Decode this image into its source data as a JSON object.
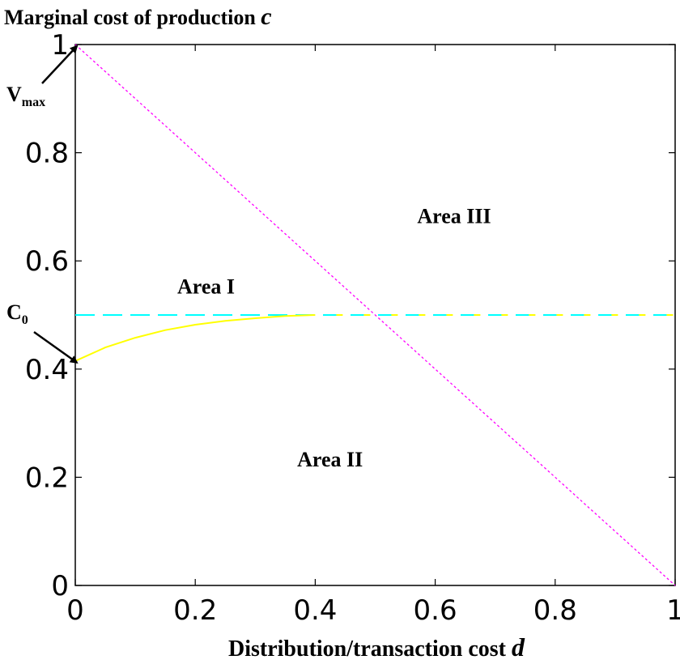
{
  "chart_data": {
    "type": "line",
    "title": "Marginal cost of production ",
    "title_var": "c",
    "xlabel": "Distribution/transaction cost ",
    "xlabel_var": "d",
    "ylabel": "",
    "xlim": [
      0,
      1
    ],
    "ylim": [
      0,
      1
    ],
    "x_ticks": [
      0,
      0.2,
      0.4,
      0.6,
      0.8,
      1
    ],
    "x_tick_labels": [
      "0",
      "0.2",
      "0.4",
      "0.6",
      "0.8",
      "1"
    ],
    "y_ticks": [
      0,
      0.2,
      0.4,
      0.6,
      0.8,
      1
    ],
    "y_tick_labels": [
      "0",
      "0.2",
      "0.4",
      "0.6",
      "0.8",
      "1"
    ],
    "grid": false,
    "series": [
      {
        "style": "dotted",
        "color": "#ff00ff",
        "x": [
          0,
          1
        ],
        "y": [
          1,
          0
        ]
      },
      {
        "style": "dashed",
        "color": "#00ffff",
        "x": [
          0,
          1
        ],
        "y": [
          0.5,
          0.5
        ]
      },
      {
        "style": "solid-then-dashed",
        "color": "#ffff00",
        "x": [
          0,
          0.05,
          0.1,
          0.15,
          0.2,
          0.25,
          0.3,
          0.35,
          0.4,
          0.5,
          0.6,
          0.7,
          0.8,
          0.9,
          1.0
        ],
        "y": [
          0.415,
          0.44,
          0.458,
          0.472,
          0.482,
          0.489,
          0.494,
          0.498,
          0.5,
          0.5,
          0.5,
          0.5,
          0.5,
          0.5,
          0.5
        ]
      }
    ],
    "annotations": [
      {
        "text": "Area I",
        "x": 0.17,
        "y": 0.54
      },
      {
        "text": "Area II",
        "x": 0.37,
        "y": 0.22
      },
      {
        "text": "Area III",
        "x": 0.57,
        "y": 0.67
      },
      {
        "text": "V",
        "subscript": "max",
        "x_tip": 0.0,
        "y_tip": 1.0
      },
      {
        "text": "C",
        "subscript": "0",
        "x_tip": 0.0,
        "y_tip": 0.415
      }
    ]
  }
}
